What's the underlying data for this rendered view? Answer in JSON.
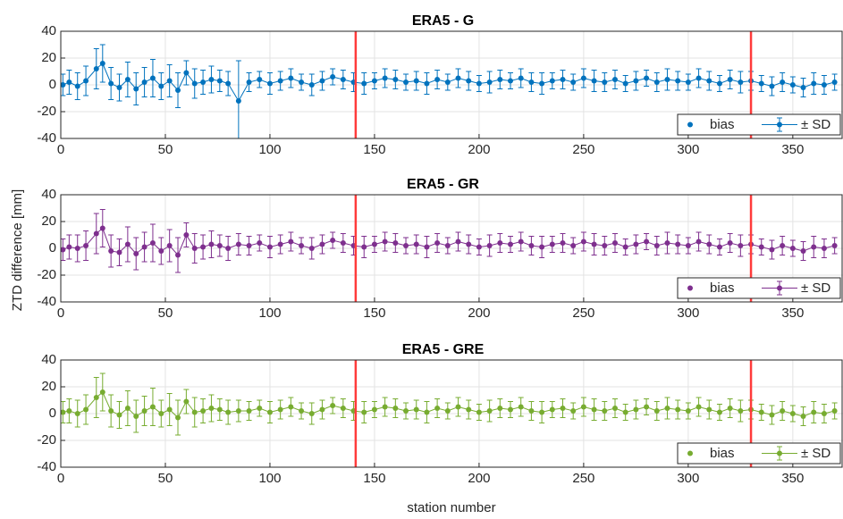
{
  "axis_labels": {
    "y": "ZTD difference [mm]",
    "x": "station number"
  },
  "chart_data": [
    {
      "type": "errorbar",
      "title": "ERA5 - G",
      "x": [
        1,
        4,
        8,
        12,
        17,
        20,
        24,
        28,
        32,
        36,
        40,
        44,
        48,
        52,
        56,
        60,
        64,
        68,
        72,
        76,
        80,
        85,
        90,
        95,
        100,
        105,
        110,
        115,
        120,
        125,
        130,
        135,
        140,
        145,
        150,
        155,
        160,
        165,
        170,
        175,
        180,
        185,
        190,
        195,
        200,
        205,
        210,
        215,
        220,
        225,
        230,
        235,
        240,
        245,
        250,
        255,
        260,
        265,
        270,
        275,
        280,
        285,
        290,
        295,
        300,
        305,
        310,
        315,
        320,
        325,
        330,
        335,
        340,
        345,
        350,
        355,
        360,
        365,
        370
      ],
      "series": [
        {
          "name": "bias",
          "color": "#0072bd",
          "values": [
            0,
            2,
            -1,
            3,
            12,
            16,
            1,
            -2,
            4,
            -3,
            2,
            5,
            -1,
            3,
            -4,
            9,
            1,
            2,
            4,
            3,
            1,
            -12,
            2,
            4,
            1,
            3,
            5,
            2,
            0,
            3,
            6,
            4,
            2,
            1,
            3,
            5,
            4,
            2,
            3,
            1,
            4,
            2,
            5,
            3,
            1,
            2,
            4,
            3,
            5,
            2,
            1,
            3,
            4,
            2,
            5,
            3,
            2,
            4,
            1,
            3,
            5,
            2,
            4,
            3,
            2,
            5,
            3,
            1,
            4,
            2,
            3,
            1,
            -1,
            2,
            0,
            -2,
            1,
            0,
            2
          ]
        }
      ],
      "error": {
        "name": "± SD",
        "values": [
          8,
          9,
          10,
          11,
          15,
          14,
          12,
          10,
          13,
          12,
          11,
          14,
          10,
          12,
          13,
          9,
          11,
          9,
          10,
          8,
          9,
          30,
          7,
          6,
          8,
          7,
          7,
          6,
          8,
          7,
          6,
          7,
          7,
          8,
          6,
          7,
          7,
          6,
          7,
          8,
          7,
          6,
          7,
          7,
          6,
          8,
          7,
          6,
          7,
          7,
          8,
          6,
          7,
          6,
          7,
          8,
          7,
          7,
          6,
          7,
          6,
          7,
          8,
          7,
          6,
          7,
          7,
          6,
          7,
          8,
          7,
          6,
          7,
          7,
          6,
          7,
          8,
          7,
          6
        ]
      },
      "vlines": [
        141,
        330
      ],
      "xlim": [
        0,
        374
      ],
      "ylim": [
        -40,
        40
      ],
      "xticks": [
        0,
        50,
        100,
        150,
        200,
        250,
        300,
        350
      ],
      "yticks": [
        -40,
        -20,
        0,
        20,
        40
      ],
      "grid": true,
      "legend": "lower right"
    },
    {
      "type": "errorbar",
      "title": "ERA5 - GR",
      "x": [
        1,
        4,
        8,
        12,
        17,
        20,
        24,
        28,
        32,
        36,
        40,
        44,
        48,
        52,
        56,
        60,
        64,
        68,
        72,
        76,
        80,
        85,
        90,
        95,
        100,
        105,
        110,
        115,
        120,
        125,
        130,
        135,
        140,
        145,
        150,
        155,
        160,
        165,
        170,
        175,
        180,
        185,
        190,
        195,
        200,
        205,
        210,
        215,
        220,
        225,
        230,
        235,
        240,
        245,
        250,
        255,
        260,
        265,
        270,
        275,
        280,
        285,
        290,
        295,
        300,
        305,
        310,
        315,
        320,
        325,
        330,
        335,
        340,
        345,
        350,
        355,
        360,
        365,
        370
      ],
      "series": [
        {
          "name": "bias",
          "color": "#7e2f8e",
          "values": [
            -1,
            1,
            0,
            2,
            11,
            15,
            -2,
            -3,
            3,
            -4,
            1,
            4,
            -2,
            2,
            -5,
            10,
            0,
            1,
            3,
            2,
            0,
            3,
            2,
            4,
            1,
            3,
            5,
            2,
            0,
            3,
            6,
            4,
            2,
            1,
            3,
            5,
            4,
            2,
            3,
            1,
            4,
            2,
            5,
            3,
            1,
            2,
            4,
            3,
            5,
            2,
            1,
            3,
            4,
            2,
            5,
            3,
            2,
            4,
            1,
            3,
            5,
            2,
            4,
            3,
            2,
            5,
            3,
            1,
            4,
            2,
            3,
            1,
            -1,
            2,
            0,
            -2,
            1,
            0,
            2
          ]
        }
      ],
      "error": {
        "name": "± SD",
        "values": [
          8,
          9,
          10,
          11,
          15,
          14,
          12,
          10,
          13,
          12,
          11,
          14,
          10,
          12,
          13,
          9,
          11,
          9,
          10,
          8,
          9,
          8,
          7,
          6,
          8,
          7,
          7,
          6,
          8,
          7,
          6,
          7,
          7,
          8,
          6,
          7,
          7,
          6,
          7,
          8,
          7,
          6,
          7,
          7,
          6,
          8,
          7,
          6,
          7,
          7,
          8,
          6,
          7,
          6,
          7,
          8,
          7,
          7,
          6,
          7,
          6,
          7,
          8,
          7,
          6,
          7,
          7,
          6,
          7,
          8,
          7,
          6,
          7,
          7,
          6,
          7,
          8,
          7,
          6
        ]
      },
      "vlines": [
        141,
        330
      ],
      "xlim": [
        0,
        374
      ],
      "ylim": [
        -40,
        40
      ],
      "xticks": [
        0,
        50,
        100,
        150,
        200,
        250,
        300,
        350
      ],
      "yticks": [
        -40,
        -20,
        0,
        20,
        40
      ],
      "grid": true,
      "legend": "lower right"
    },
    {
      "type": "errorbar",
      "title": "ERA5 - GRE",
      "x": [
        1,
        4,
        8,
        12,
        17,
        20,
        24,
        28,
        32,
        36,
        40,
        44,
        48,
        52,
        56,
        60,
        64,
        68,
        72,
        76,
        80,
        85,
        90,
        95,
        100,
        105,
        110,
        115,
        120,
        125,
        130,
        135,
        140,
        145,
        150,
        155,
        160,
        165,
        170,
        175,
        180,
        185,
        190,
        195,
        200,
        205,
        210,
        215,
        220,
        225,
        230,
        235,
        240,
        245,
        250,
        255,
        260,
        265,
        270,
        275,
        280,
        285,
        290,
        295,
        300,
        305,
        310,
        315,
        320,
        325,
        330,
        335,
        340,
        345,
        350,
        355,
        360,
        365,
        370
      ],
      "series": [
        {
          "name": "bias",
          "color": "#77ac30",
          "values": [
            1,
            2,
            0,
            3,
            12,
            16,
            2,
            -1,
            4,
            -2,
            2,
            5,
            0,
            3,
            -3,
            9,
            1,
            2,
            4,
            3,
            1,
            2,
            2,
            4,
            1,
            3,
            5,
            2,
            0,
            3,
            6,
            4,
            2,
            1,
            3,
            5,
            4,
            2,
            3,
            1,
            4,
            2,
            5,
            3,
            1,
            2,
            4,
            3,
            5,
            2,
            1,
            3,
            4,
            2,
            5,
            3,
            2,
            4,
            1,
            3,
            5,
            2,
            4,
            3,
            2,
            5,
            3,
            1,
            4,
            2,
            3,
            1,
            -1,
            2,
            0,
            -2,
            1,
            0,
            2
          ]
        }
      ],
      "error": {
        "name": "± SD",
        "values": [
          8,
          9,
          10,
          11,
          15,
          14,
          12,
          10,
          13,
          12,
          11,
          14,
          10,
          12,
          13,
          9,
          11,
          9,
          10,
          8,
          9,
          8,
          7,
          6,
          8,
          7,
          7,
          6,
          8,
          7,
          6,
          7,
          7,
          8,
          6,
          7,
          7,
          6,
          7,
          8,
          7,
          6,
          7,
          7,
          6,
          8,
          7,
          6,
          7,
          7,
          8,
          6,
          7,
          6,
          7,
          8,
          7,
          7,
          6,
          7,
          6,
          7,
          8,
          7,
          6,
          7,
          7,
          6,
          7,
          8,
          7,
          6,
          7,
          7,
          6,
          7,
          8,
          7,
          6
        ]
      },
      "vlines": [
        141,
        330
      ],
      "xlim": [
        0,
        374
      ],
      "ylim": [
        -40,
        40
      ],
      "xticks": [
        0,
        50,
        100,
        150,
        200,
        250,
        300,
        350
      ],
      "yticks": [
        -40,
        -20,
        0,
        20,
        40
      ],
      "grid": true,
      "legend": "lower right"
    }
  ]
}
